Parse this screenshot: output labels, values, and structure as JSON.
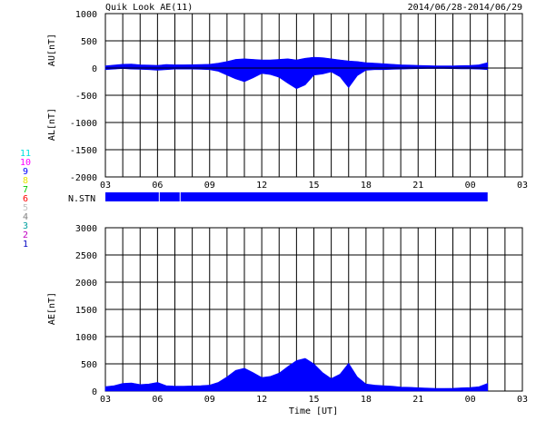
{
  "header": {
    "title": "Quik Look AE(11)",
    "date_range": "2014/06/28-2014/06/29"
  },
  "colors": {
    "data_fill": "#0000ff",
    "grid": "#000000",
    "background": "#ffffff"
  },
  "station_legend": [
    {
      "label": "11",
      "color": "#00e0e0"
    },
    {
      "label": "10",
      "color": "#ff00ff"
    },
    {
      "label": "9",
      "color": "#0000ff"
    },
    {
      "label": "8",
      "color": "#e6e600"
    },
    {
      "label": "7",
      "color": "#00c800"
    },
    {
      "label": "6",
      "color": "#ff0000"
    },
    {
      "label": "5",
      "color": "#c0c0c0"
    },
    {
      "label": "4",
      "color": "#808080"
    },
    {
      "label": "3",
      "color": "#00a0a0"
    },
    {
      "label": "2",
      "color": "#c000c0"
    },
    {
      "label": "1",
      "color": "#0000c0"
    }
  ],
  "nstn": {
    "label": "N.STN",
    "gaps_hours": [
      6.1,
      7.3
    ]
  },
  "chart_data": [
    {
      "type": "area",
      "panel": "AU/AL",
      "ylabel_top": "AU[nT]",
      "ylabel_bottom": "AL[nT]",
      "xlabel": "",
      "ylim": [
        -2000,
        1000
      ],
      "yticks": [
        "1000",
        "500",
        "0",
        "-500",
        "-1000",
        "-1500",
        "-2000"
      ],
      "xlim_hours": [
        3,
        27
      ],
      "xticks": [
        "03",
        "06",
        "09",
        "12",
        "15",
        "18",
        "21",
        "00",
        "03"
      ],
      "grid": true,
      "x_hours": [
        3.0,
        3.5,
        4.0,
        4.5,
        5.0,
        5.5,
        6.0,
        6.5,
        7.0,
        7.5,
        8.0,
        8.5,
        9.0,
        9.5,
        10.0,
        10.5,
        11.0,
        11.5,
        12.0,
        12.5,
        13.0,
        13.5,
        14.0,
        14.5,
        15.0,
        15.5,
        16.0,
        16.5,
        17.0,
        17.5,
        18.0,
        18.5,
        19.0,
        19.5,
        20.0,
        20.5,
        21.0,
        21.5,
        22.0,
        22.5,
        23.0,
        23.5,
        24.0,
        24.5,
        25.0
      ],
      "series": [
        {
          "name": "AU",
          "values": [
            40,
            55,
            70,
            75,
            60,
            55,
            50,
            65,
            60,
            60,
            62,
            65,
            70,
            90,
            120,
            160,
            170,
            160,
            150,
            150,
            160,
            170,
            150,
            180,
            200,
            190,
            170,
            150,
            130,
            120,
            100,
            90,
            80,
            70,
            60,
            55,
            50,
            45,
            40,
            40,
            40,
            45,
            50,
            60,
            100
          ]
        },
        {
          "name": "AL",
          "values": [
            -30,
            -20,
            -10,
            -20,
            -25,
            -30,
            -40,
            -30,
            -20,
            -20,
            -20,
            -25,
            -30,
            -60,
            -130,
            -200,
            -250,
            -180,
            -100,
            -120,
            -170,
            -280,
            -380,
            -310,
            -130,
            -110,
            -70,
            -160,
            -360,
            -140,
            -40,
            -30,
            -30,
            -25,
            -20,
            -15,
            -12,
            -10,
            -10,
            -10,
            -12,
            -15,
            -15,
            -20,
            -30
          ]
        }
      ]
    },
    {
      "type": "area",
      "panel": "AE",
      "ylabel": "AE[nT]",
      "xlabel": "Time [UT]",
      "ylim": [
        0,
        3000
      ],
      "yticks": [
        "3000",
        "2500",
        "2000",
        "1500",
        "1000",
        "500",
        "0"
      ],
      "xlim_hours": [
        3,
        27
      ],
      "xticks": [
        "03",
        "06",
        "09",
        "12",
        "15",
        "18",
        "21",
        "00",
        "03"
      ],
      "grid": true,
      "x_hours": [
        3.0,
        3.5,
        4.0,
        4.5,
        5.0,
        5.5,
        6.0,
        6.5,
        7.0,
        7.5,
        8.0,
        8.5,
        9.0,
        9.5,
        10.0,
        10.5,
        11.0,
        11.5,
        12.0,
        12.5,
        13.0,
        13.5,
        14.0,
        14.5,
        15.0,
        15.5,
        16.0,
        16.5,
        17.0,
        17.5,
        18.0,
        18.5,
        19.0,
        19.5,
        20.0,
        20.5,
        21.0,
        21.5,
        22.0,
        22.5,
        23.0,
        23.5,
        24.0,
        24.5,
        25.0
      ],
      "series": [
        {
          "name": "AE",
          "values": [
            80,
            100,
            140,
            150,
            120,
            130,
            160,
            100,
            90,
            90,
            95,
            100,
            110,
            160,
            260,
            380,
            420,
            340,
            250,
            270,
            330,
            450,
            560,
            600,
            500,
            340,
            230,
            310,
            510,
            260,
            130,
            110,
            100,
            90,
            75,
            70,
            62,
            55,
            50,
            50,
            52,
            60,
            65,
            80,
            140
          ]
        }
      ]
    }
  ]
}
